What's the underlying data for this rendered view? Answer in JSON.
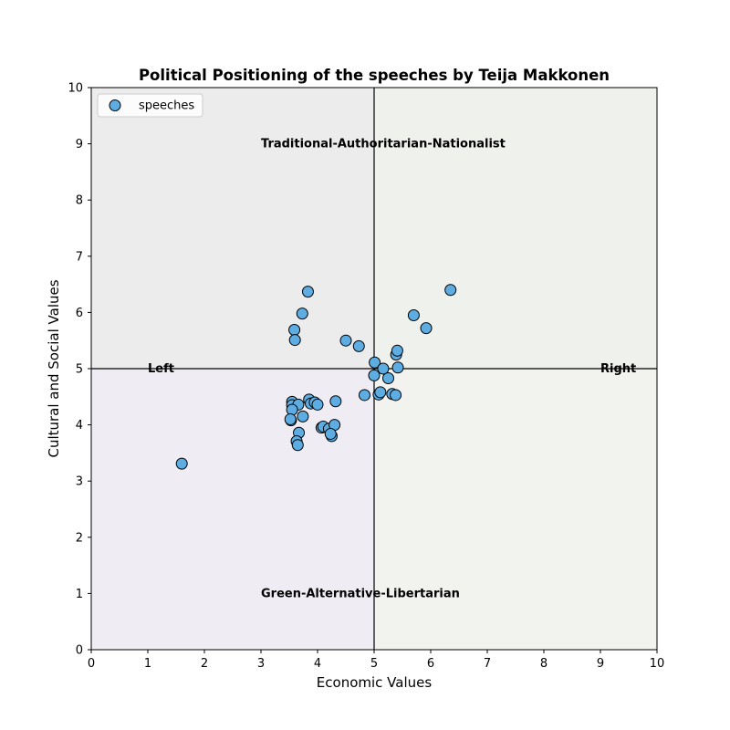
{
  "chart_data": {
    "type": "scatter",
    "title": "Political Positioning of the speeches by Teija Makkonen",
    "xlabel": "Economic Values",
    "ylabel": "Cultural and Social Values",
    "xlim": [
      0,
      10
    ],
    "ylim": [
      0,
      10
    ],
    "xticks": [
      0,
      1,
      2,
      3,
      4,
      5,
      6,
      7,
      8,
      9,
      10
    ],
    "yticks": [
      0,
      1,
      2,
      3,
      4,
      5,
      6,
      7,
      8,
      9,
      10
    ],
    "grid": false,
    "legend": {
      "placement": "top-left",
      "entries": [
        "speeches"
      ]
    },
    "quadrant_divider": {
      "x": 5,
      "y": 5
    },
    "quadrant_colors": {
      "top_left": "#ececec",
      "top_right": "#eff1ec",
      "bottom_left": "#efedf3",
      "bottom_right": "#f2f3ef"
    },
    "annotations": [
      {
        "text": "Traditional-Authoritarian-Nationalist",
        "x": 3.0,
        "y": 9.0
      },
      {
        "text": "Green-Alternative-Libertarian",
        "x": 3.0,
        "y": 1.0
      },
      {
        "text": "Left",
        "x": 1.0,
        "y": 5.0
      },
      {
        "text": "Right",
        "x": 9.0,
        "y": 5.0
      }
    ],
    "series": [
      {
        "name": "speeches",
        "color": "#5dade2",
        "edgecolor": "#000000",
        "x": [
          1.6,
          3.83,
          3.73,
          3.59,
          3.6,
          4.5,
          4.73,
          5.01,
          5.39,
          5.41,
          5.42,
          5.7,
          5.92,
          6.35,
          5.16,
          5.0,
          5.25,
          4.83,
          5.08,
          5.11,
          5.32,
          5.38,
          3.55,
          3.55,
          3.66,
          3.53,
          3.55,
          3.85,
          3.88,
          3.95,
          4.0,
          4.32,
          3.74,
          3.52,
          4.07,
          4.1,
          4.2,
          4.3,
          3.67,
          4.25,
          4.23,
          3.63,
          3.65
        ],
        "y": [
          3.31,
          6.37,
          5.98,
          5.69,
          5.51,
          5.5,
          5.4,
          5.11,
          5.25,
          5.32,
          5.02,
          5.95,
          5.72,
          6.4,
          5.0,
          4.88,
          4.83,
          4.53,
          4.54,
          4.58,
          4.55,
          4.53,
          4.41,
          4.35,
          4.36,
          4.08,
          4.27,
          4.45,
          4.38,
          4.4,
          4.36,
          4.42,
          4.15,
          4.1,
          3.95,
          3.97,
          3.93,
          4.0,
          3.86,
          3.8,
          3.84,
          3.71,
          3.64
        ]
      }
    ]
  }
}
